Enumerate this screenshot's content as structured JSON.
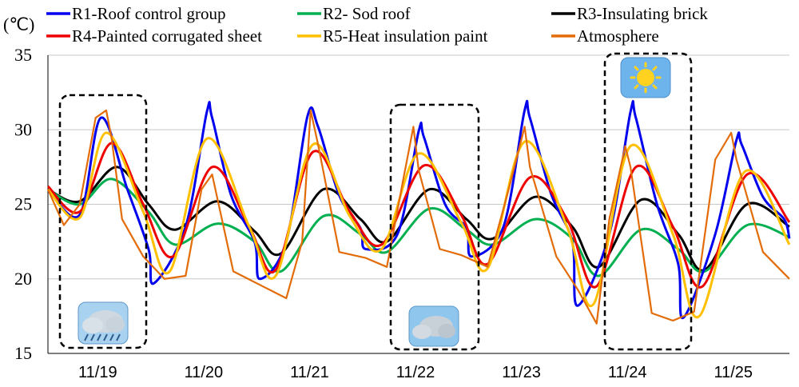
{
  "chart_data": {
    "type": "line",
    "unit_label": "(℃)",
    "ylim": [
      15,
      35
    ],
    "y_ticks": [
      15,
      20,
      25,
      30,
      35
    ],
    "x_ticks": [
      "11/19",
      "11/20",
      "11/21",
      "11/22",
      "11/23",
      "11/24",
      "11/25"
    ],
    "x_range_days": [
      0,
      7
    ],
    "grid": "horizontal",
    "legend_position": "top",
    "series": [
      {
        "name": "R1-Roof control group",
        "color": "#0000ee",
        "x": [
          0,
          0.3,
          0.5,
          0.75,
          0.95,
          1.0,
          1.3,
          1.5,
          1.55,
          1.73,
          1.95,
          2.0,
          2.25,
          2.45,
          2.55,
          2.75,
          2.95,
          3.0,
          3.3,
          3.5,
          3.55,
          3.75,
          3.95,
          4.0,
          4.3,
          4.5,
          4.55,
          4.75,
          4.95,
          5.0,
          5.3,
          5.5,
          5.55,
          5.75,
          5.95,
          6.0,
          6.3,
          6.5,
          6.55,
          6.75,
          6.95,
          7.0
        ],
        "values": [
          26,
          24.3,
          30.8,
          26,
          22,
          19.7,
          23.5,
          31.2,
          30.8,
          25.6,
          22.5,
          20,
          22.5,
          30.9,
          30.2,
          25.6,
          23.4,
          22,
          23,
          29.9,
          29.5,
          25,
          23.4,
          21.5,
          23.5,
          31.3,
          30.8,
          25.7,
          22.5,
          18.2,
          23,
          31.2,
          30.8,
          25,
          21,
          17.4,
          23,
          29.3,
          29,
          25.5,
          24,
          22.7
        ]
      },
      {
        "name": "R2- Sod roof",
        "color": "#00b050",
        "x": [
          0,
          0.3,
          0.6,
          0.95,
          1.2,
          1.6,
          1.95,
          2.2,
          2.6,
          2.95,
          3.2,
          3.6,
          3.95,
          4.2,
          4.6,
          4.95,
          5.2,
          5.6,
          5.95,
          6.2,
          6.6,
          7.0
        ],
        "values": [
          26,
          25,
          26.7,
          24.5,
          22.3,
          23.7,
          22.5,
          20.5,
          24.2,
          23,
          21.8,
          24.7,
          23.3,
          22.3,
          24,
          22.7,
          20.2,
          23.3,
          22,
          20.5,
          23.6,
          22.8
        ]
      },
      {
        "name": "R3-Insulating brick",
        "color": "#000000",
        "x": [
          0,
          0.3,
          0.65,
          0.95,
          1.2,
          1.6,
          1.95,
          2.2,
          2.6,
          2.95,
          3.2,
          3.6,
          3.95,
          4.2,
          4.6,
          4.95,
          5.2,
          5.6,
          5.95,
          6.2,
          6.6,
          7.0
        ],
        "values": [
          26,
          25.2,
          27.5,
          25,
          23.3,
          25.2,
          23.2,
          21.7,
          26,
          24,
          22.5,
          26,
          24,
          22.7,
          25.5,
          23.5,
          20.8,
          25.3,
          23,
          20.6,
          25,
          23.5
        ]
      },
      {
        "name": "R4-Painted corrugated sheet",
        "color": "#ee0000",
        "x": [
          0,
          0.3,
          0.6,
          0.9,
          1.18,
          1.55,
          1.9,
          2.15,
          2.5,
          2.85,
          3.15,
          3.55,
          3.9,
          4.15,
          4.55,
          4.9,
          5.18,
          5.55,
          5.9,
          6.18,
          6.6,
          7.0
        ],
        "values": [
          26.2,
          24.5,
          29.1,
          25,
          21.5,
          27.5,
          23.5,
          20.6,
          28.5,
          24.5,
          22.3,
          27.6,
          24.3,
          21,
          26.8,
          24,
          19.5,
          27.5,
          23.5,
          19.5,
          27,
          23.8
        ]
      },
      {
        "name": "R5-Heat insulation paint",
        "color": "#ffc000",
        "x": [
          0,
          0.3,
          0.55,
          0.9,
          1.15,
          1.5,
          1.9,
          2.15,
          2.5,
          2.85,
          3.15,
          3.5,
          3.9,
          4.15,
          4.5,
          4.9,
          5.15,
          5.5,
          5.9,
          6.15,
          6.58,
          7.0
        ],
        "values": [
          26,
          24.1,
          29.8,
          24.5,
          20.5,
          29.4,
          23.5,
          20.2,
          29,
          24.2,
          22,
          28.4,
          23.8,
          20.7,
          29.2,
          23.5,
          18.3,
          28.9,
          23,
          17.5,
          27.2,
          22.3
        ]
      },
      {
        "name": "Atmosphere",
        "color": "#e36c09",
        "x": [
          0,
          0.15,
          0.3,
          0.45,
          0.55,
          0.6,
          0.7,
          0.9,
          1.1,
          1.3,
          1.45,
          1.55,
          1.75,
          2.0,
          2.25,
          2.4,
          2.48,
          2.55,
          2.75,
          3.0,
          3.2,
          3.35,
          3.45,
          3.5,
          3.7,
          3.9,
          4.15,
          4.35,
          4.5,
          4.55,
          4.8,
          5.0,
          5.18,
          5.3,
          5.45,
          5.5,
          5.7,
          5.9,
          6.1,
          6.3,
          6.45,
          6.5,
          6.75,
          7.0
        ],
        "values": [
          26,
          23.6,
          25,
          30.8,
          31.3,
          29.5,
          24,
          21.5,
          20,
          20.2,
          26,
          27,
          20.5,
          19.6,
          18.7,
          22.5,
          31.3,
          29,
          21.8,
          21.4,
          20.8,
          26.5,
          30.2,
          27.3,
          22,
          21.6,
          20.8,
          26,
          30.2,
          27.5,
          21.5,
          19.3,
          17,
          24,
          28.9,
          27.5,
          17.7,
          17.2,
          17.8,
          28,
          29.8,
          28,
          21.8,
          20
        ]
      }
    ]
  }
}
